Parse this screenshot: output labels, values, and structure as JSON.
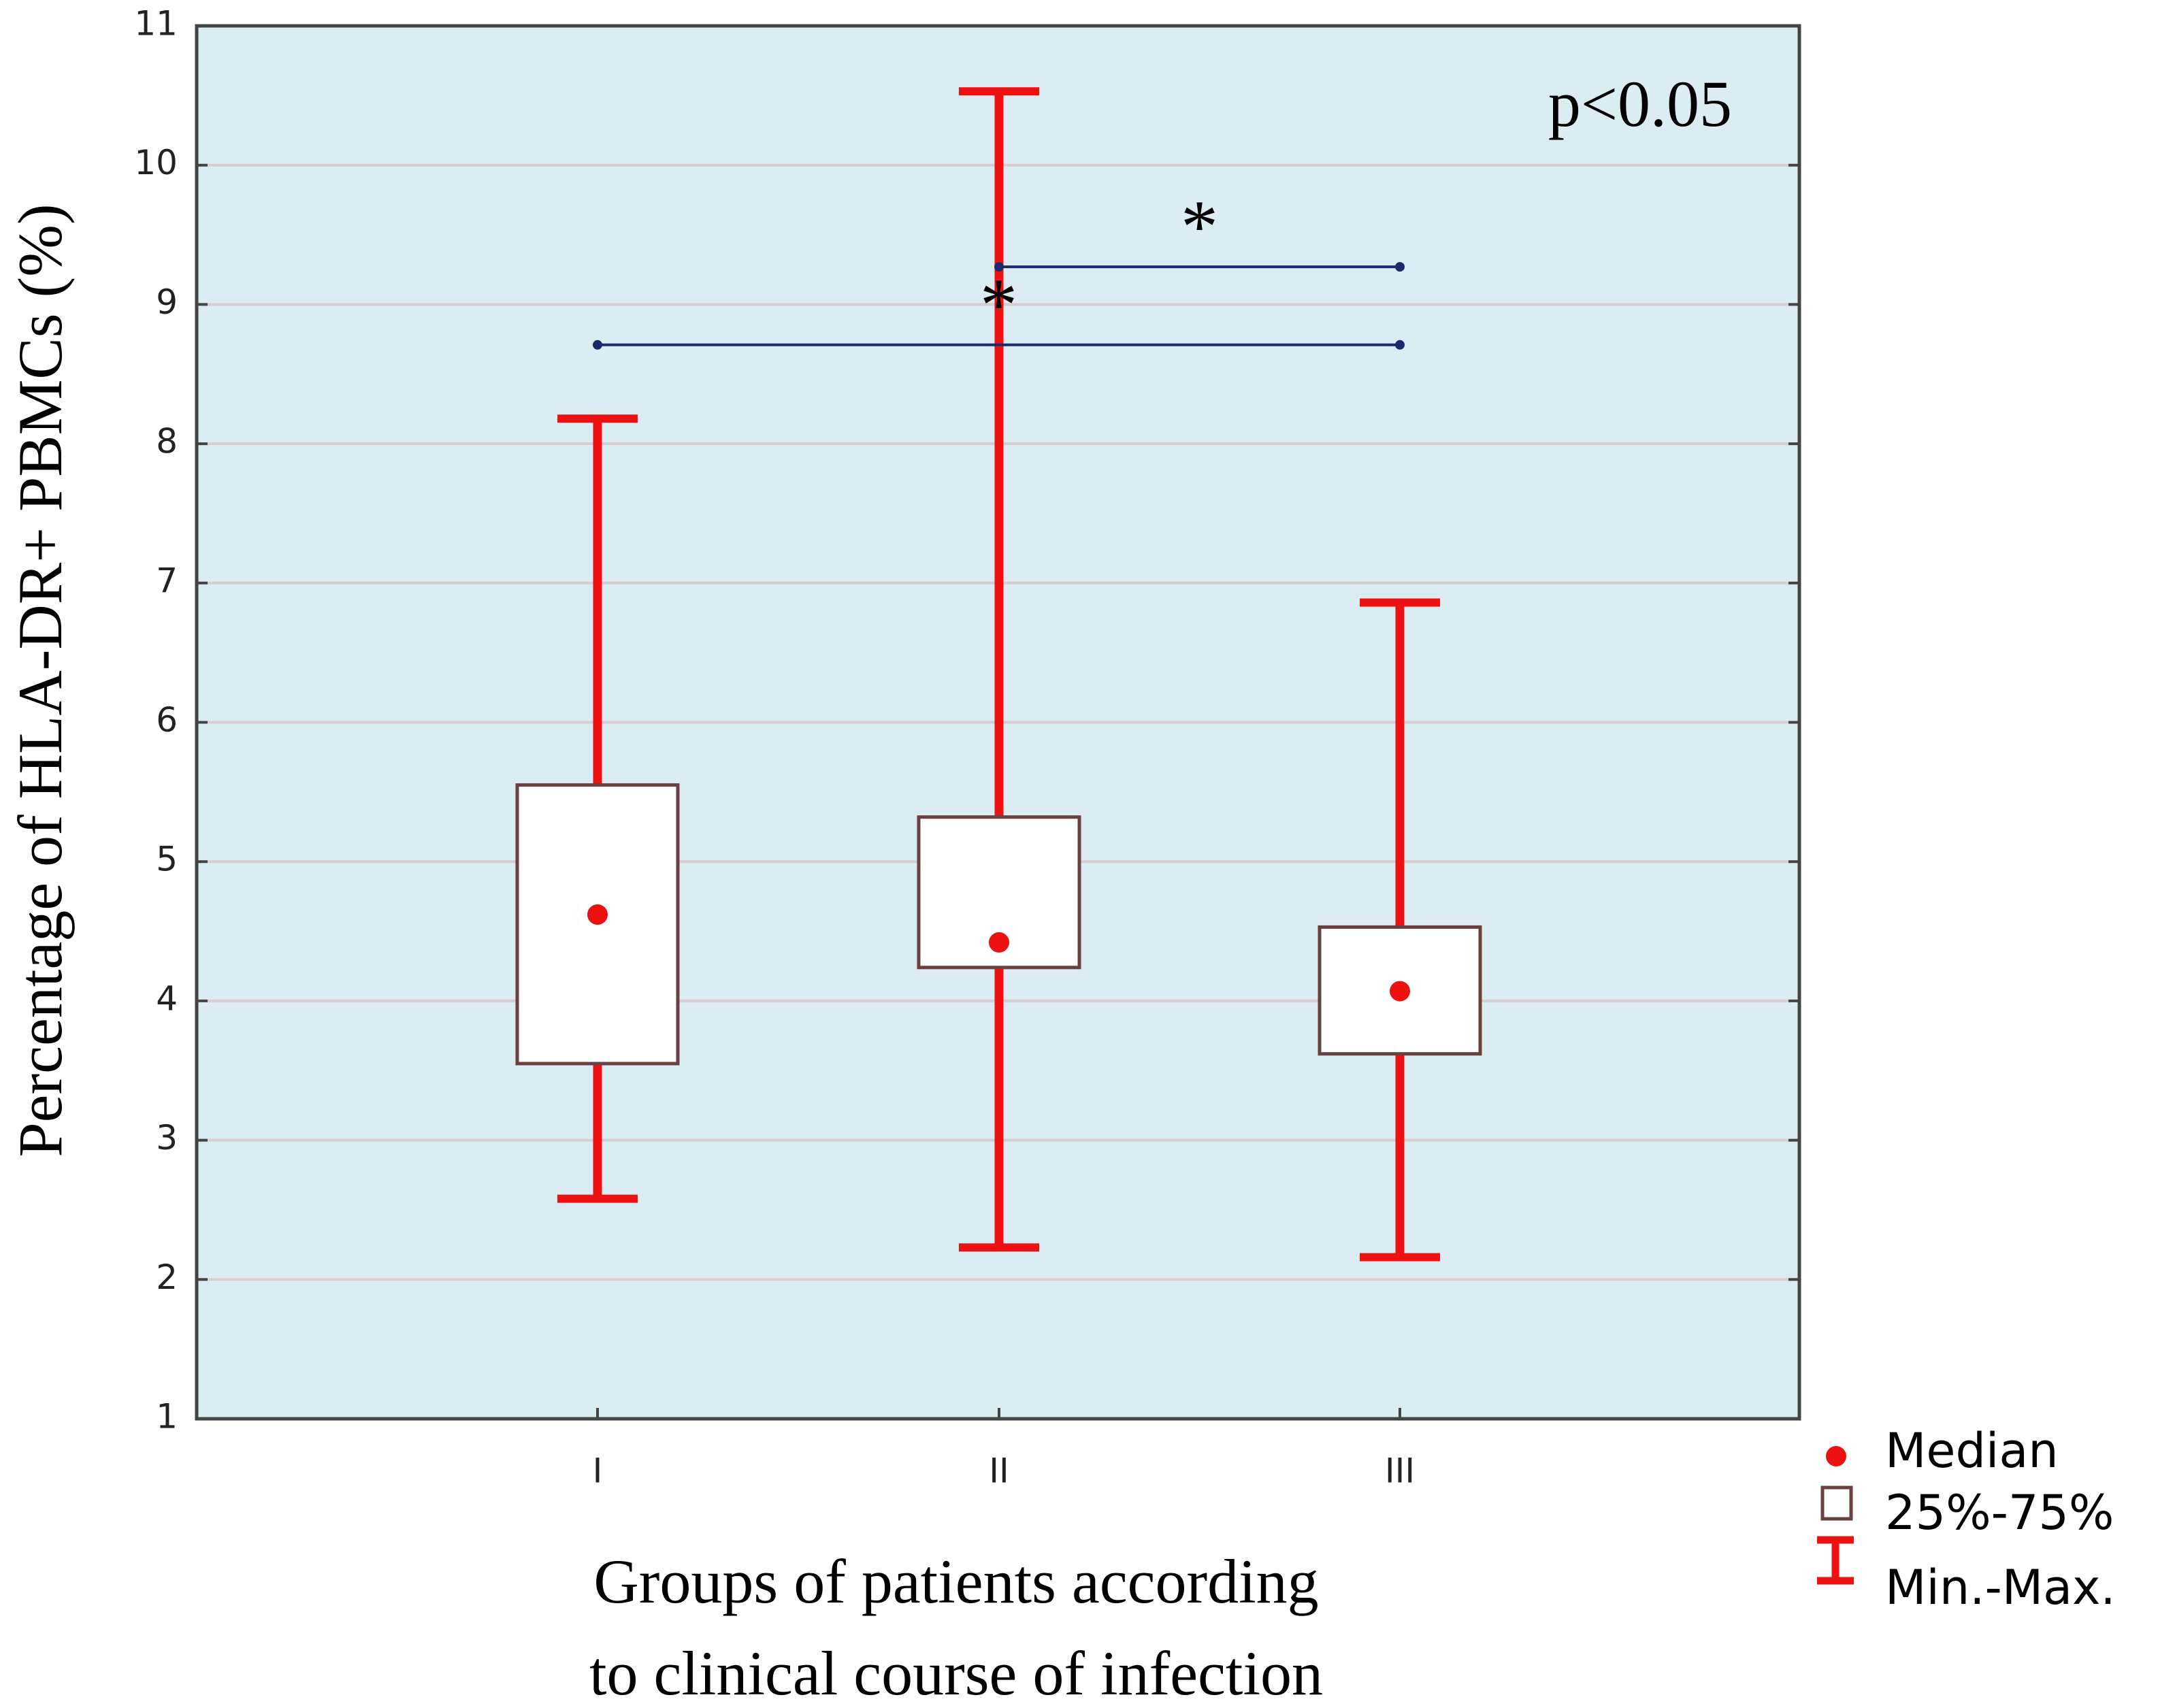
{
  "chart_data": {
    "type": "box",
    "xlabel_lines": [
      "Groups of patients according",
      "to clinical  course of infection"
    ],
    "ylabel": "Percentage of HLA-DR+ PBMCs (%)",
    "ylim": [
      1,
      11
    ],
    "yticks": [
      1,
      2,
      3,
      4,
      5,
      6,
      7,
      8,
      9,
      10,
      11
    ],
    "grid": true,
    "categories": [
      "I",
      "II",
      "III"
    ],
    "boxes": [
      {
        "category": "I",
        "min": 2.58,
        "q1": 3.55,
        "median": 4.62,
        "q3": 5.55,
        "max": 8.18
      },
      {
        "category": "II",
        "min": 2.23,
        "q1": 4.24,
        "median": 4.42,
        "q3": 5.32,
        "max": 10.53
      },
      {
        "category": "III",
        "min": 2.16,
        "q1": 3.62,
        "median": 4.07,
        "q3": 4.53,
        "max": 6.86
      }
    ],
    "significance": [
      {
        "from": "II",
        "to": "III",
        "y": 9.27,
        "label": "*"
      },
      {
        "from": "I",
        "to": "III",
        "y": 8.71,
        "label": "*"
      }
    ],
    "annotation": "p<0.05",
    "legend_position": "bottom-right",
    "legend": [
      {
        "symbol": "median-dot",
        "label": "Median"
      },
      {
        "symbol": "box",
        "label": "25%-75%"
      },
      {
        "symbol": "whisker",
        "label": "Min.-Max."
      }
    ],
    "colors": {
      "plot_background": "#dcecf3",
      "gridline": "#d7cdd2",
      "whisker": "#ee1111",
      "box_fill": "#ffffff",
      "box_stroke": "#6b4040",
      "median": "#ee1111",
      "significance_line": "#1a2a6a",
      "axis": "#444444"
    }
  }
}
